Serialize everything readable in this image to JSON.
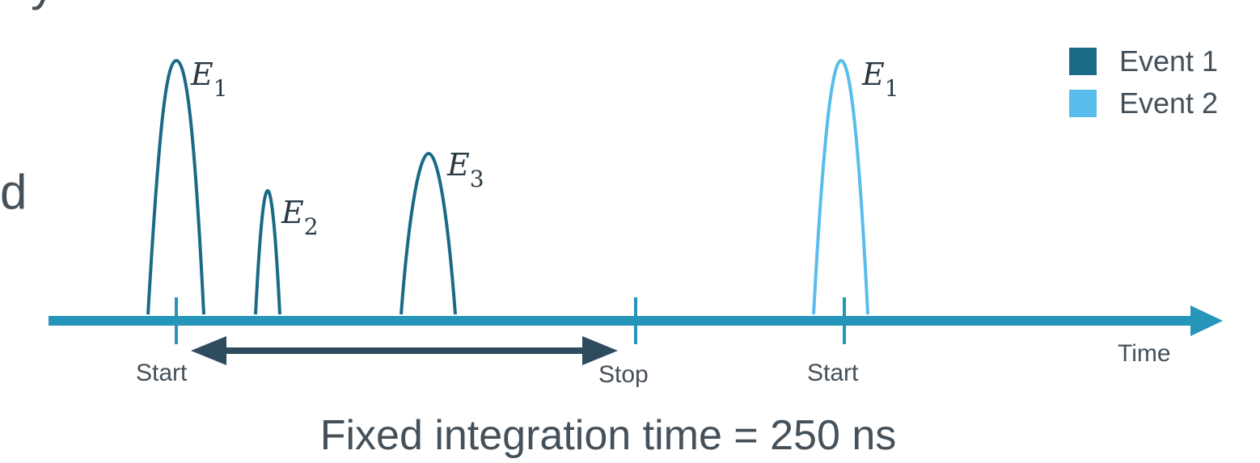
{
  "colors": {
    "event1": "#1a6a86",
    "event2": "#59bdec",
    "axis": "#2595ba",
    "span_arrow": "#2f4b5e",
    "text": "#44505a"
  },
  "partial_text": {
    "top_fragment": "y",
    "left_fragment": "d"
  },
  "legend": [
    {
      "label": "Event 1",
      "color": "#1a6a86"
    },
    {
      "label": "Event 2",
      "color": "#59bdec"
    }
  ],
  "pulses": [
    {
      "id": "e1a",
      "symbol": "E",
      "subscript": "1",
      "event": "Event 1"
    },
    {
      "id": "e2",
      "symbol": "E",
      "subscript": "2",
      "event": "Event 1"
    },
    {
      "id": "e3",
      "symbol": "E",
      "subscript": "3",
      "event": "Event 1"
    },
    {
      "id": "e1b",
      "symbol": "E",
      "subscript": "1",
      "event": "Event 2"
    }
  ],
  "axis": {
    "label": "Time",
    "ticks": [
      "Start",
      "Stop",
      "Start"
    ]
  },
  "integration": {
    "caption": "Fixed integration time = 250 ns"
  }
}
